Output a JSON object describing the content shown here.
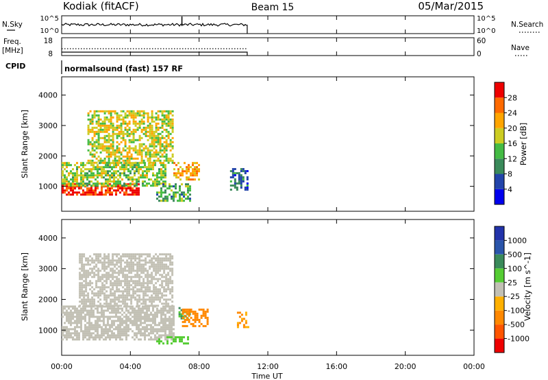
{
  "header": {
    "radar_label": "Kodiak (fitACF)",
    "beam_label": "Beam 15",
    "date_label": "05/Mar/2015"
  },
  "params": {
    "nsky_label": "N.Sky",
    "nsky_ticks": [
      "10^5",
      "10^0"
    ],
    "nsearch_label": "N.Search",
    "freq_label": "Freq.",
    "freq_unit": "[MHz]",
    "freq_ticks": [
      "18",
      "8"
    ],
    "nave_label": "Nave",
    "nave_ticks": [
      "60",
      "0"
    ],
    "cpid_label": "CPID",
    "cpid_value": "normalsound (fast) 157 RF"
  },
  "time_axis": {
    "label": "Time UT",
    "ticks": [
      "00:00",
      "04:00",
      "08:00",
      "12:00",
      "16:00",
      "20:00",
      "00:00"
    ]
  },
  "colors": {
    "power_scale": [
      "#0000ee",
      "#2244aa",
      "#3a8a5a",
      "#44bb44",
      "#cccc22",
      "#ffa500",
      "#ff6a00",
      "#ee0000"
    ],
    "velocity_scale": [
      "#2233aa",
      "#2a55aa",
      "#3a8a5a",
      "#55cc33",
      "#c2c0b4",
      "#ffb000",
      "#ff8800",
      "#ff5500",
      "#ee0000"
    ]
  },
  "chart_data": [
    {
      "type": "heatmap",
      "title": "",
      "xlabel": "Time UT",
      "ylabel": "Slant Range [km]",
      "x_range_hours": [
        0,
        24
      ],
      "ylim": [
        180,
        4600
      ],
      "yticks": [
        1000,
        2000,
        3000,
        4000
      ],
      "colorbar": {
        "label": "Power [dB]",
        "ticks": [
          "28",
          "24",
          "20",
          "16",
          "12",
          "8",
          "4"
        ],
        "range": [
          0,
          32
        ]
      },
      "data_extent_hours": [
        0,
        10.8
      ],
      "regions": [
        {
          "t_start": 0.0,
          "t_end": 4.5,
          "range_low": 700,
          "range_high": 1100,
          "value": 30
        },
        {
          "t_start": 0.0,
          "t_end": 6.0,
          "range_low": 1000,
          "range_high": 1800,
          "value": 16
        },
        {
          "t_start": 1.5,
          "t_end": 6.5,
          "range_low": 1800,
          "range_high": 3500,
          "value": 18
        },
        {
          "t_start": 5.5,
          "t_end": 7.5,
          "range_low": 550,
          "range_high": 1100,
          "value": 12
        },
        {
          "t_start": 6.5,
          "t_end": 8.0,
          "range_low": 1200,
          "range_high": 1800,
          "value": 22
        },
        {
          "t_start": 9.8,
          "t_end": 10.8,
          "range_low": 900,
          "range_high": 1600,
          "value": 8
        }
      ]
    },
    {
      "type": "heatmap",
      "title": "",
      "xlabel": "Time UT",
      "ylabel": "Slant Range [km]",
      "x_range_hours": [
        0,
        24
      ],
      "ylim": [
        180,
        4600
      ],
      "yticks": [
        1000,
        2000,
        3000,
        4000
      ],
      "colorbar": {
        "label": "Velocity [m s^-1]",
        "ticks": [
          "1000",
          "500",
          "100",
          "25",
          "-25",
          "-100",
          "-500",
          "-1000"
        ],
        "range": [
          -1200,
          1200
        ]
      },
      "data_extent_hours": [
        0,
        10.8
      ],
      "regions": [
        {
          "t_start": 0.0,
          "t_end": 6.5,
          "range_low": 700,
          "range_high": 1800,
          "value": 0
        },
        {
          "t_start": 1.0,
          "t_end": 6.5,
          "range_low": 1800,
          "range_high": 3500,
          "value": -60
        },
        {
          "t_start": 6.8,
          "t_end": 7.5,
          "range_low": 1350,
          "range_high": 1750,
          "value": 400
        },
        {
          "t_start": 7.0,
          "t_end": 8.5,
          "range_low": 1150,
          "range_high": 1700,
          "value": -500
        },
        {
          "t_start": 5.5,
          "t_end": 7.3,
          "range_low": 550,
          "range_high": 800,
          "value": 150
        },
        {
          "t_start": 10.2,
          "t_end": 10.8,
          "range_low": 1100,
          "range_high": 1600,
          "value": -400
        }
      ]
    }
  ]
}
